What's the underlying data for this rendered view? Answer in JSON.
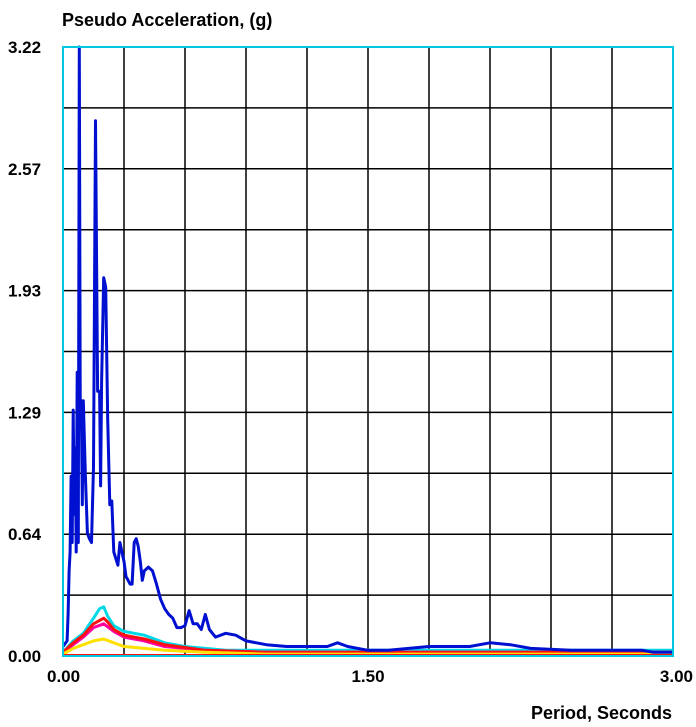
{
  "chart_data": {
    "type": "line",
    "ylabel": "Pseudo Acceleration, (g)",
    "xlabel": "Period, Seconds",
    "xlim": [
      0,
      3.0
    ],
    "ylim": [
      0,
      3.22
    ],
    "x_ticks": [
      "0.00",
      "1.50",
      "3.00"
    ],
    "y_ticks": [
      "0.00",
      "0.64",
      "1.29",
      "1.93",
      "2.57",
      "3.22"
    ],
    "grid": true,
    "series": [
      {
        "color": "#0010d0",
        "points": [
          [
            0.0,
            0.05
          ],
          [
            0.02,
            0.08
          ],
          [
            0.025,
            0.22
          ],
          [
            0.03,
            0.45
          ],
          [
            0.035,
            0.55
          ],
          [
            0.04,
            0.95
          ],
          [
            0.045,
            0.6
          ],
          [
            0.05,
            1.3
          ],
          [
            0.055,
            0.75
          ],
          [
            0.06,
            1.1
          ],
          [
            0.065,
            0.55
          ],
          [
            0.07,
            1.5
          ],
          [
            0.075,
            0.6
          ],
          [
            0.08,
            3.22
          ],
          [
            0.085,
            1.2
          ],
          [
            0.09,
            1.35
          ],
          [
            0.095,
            0.8
          ],
          [
            0.1,
            1.35
          ],
          [
            0.11,
            0.95
          ],
          [
            0.12,
            0.65
          ],
          [
            0.13,
            0.62
          ],
          [
            0.14,
            0.6
          ],
          [
            0.15,
            1.0
          ],
          [
            0.16,
            2.83
          ],
          [
            0.17,
            1.4
          ],
          [
            0.18,
            1.4
          ],
          [
            0.185,
            0.9
          ],
          [
            0.19,
            1.45
          ],
          [
            0.2,
            2.0
          ],
          [
            0.21,
            1.95
          ],
          [
            0.22,
            1.25
          ],
          [
            0.23,
            0.8
          ],
          [
            0.24,
            0.82
          ],
          [
            0.25,
            0.55
          ],
          [
            0.27,
            0.48
          ],
          [
            0.28,
            0.6
          ],
          [
            0.3,
            0.5
          ],
          [
            0.31,
            0.42
          ],
          [
            0.32,
            0.4
          ],
          [
            0.33,
            0.38
          ],
          [
            0.34,
            0.38
          ],
          [
            0.35,
            0.6
          ],
          [
            0.36,
            0.62
          ],
          [
            0.37,
            0.58
          ],
          [
            0.38,
            0.5
          ],
          [
            0.39,
            0.4
          ],
          [
            0.4,
            0.45
          ],
          [
            0.42,
            0.47
          ],
          [
            0.44,
            0.45
          ],
          [
            0.46,
            0.38
          ],
          [
            0.48,
            0.3
          ],
          [
            0.5,
            0.25
          ],
          [
            0.52,
            0.22
          ],
          [
            0.54,
            0.2
          ],
          [
            0.56,
            0.15
          ],
          [
            0.58,
            0.15
          ],
          [
            0.6,
            0.16
          ],
          [
            0.62,
            0.24
          ],
          [
            0.64,
            0.17
          ],
          [
            0.66,
            0.17
          ],
          [
            0.68,
            0.14
          ],
          [
            0.7,
            0.22
          ],
          [
            0.72,
            0.14
          ],
          [
            0.75,
            0.1
          ],
          [
            0.8,
            0.12
          ],
          [
            0.85,
            0.11
          ],
          [
            0.9,
            0.08
          ],
          [
            1.0,
            0.06
          ],
          [
            1.1,
            0.05
          ],
          [
            1.2,
            0.05
          ],
          [
            1.3,
            0.05
          ],
          [
            1.35,
            0.07
          ],
          [
            1.4,
            0.05
          ],
          [
            1.5,
            0.03
          ],
          [
            1.6,
            0.03
          ],
          [
            1.7,
            0.04
          ],
          [
            1.8,
            0.05
          ],
          [
            1.9,
            0.05
          ],
          [
            2.0,
            0.05
          ],
          [
            2.1,
            0.07
          ],
          [
            2.2,
            0.06
          ],
          [
            2.3,
            0.04
          ],
          [
            2.5,
            0.03
          ],
          [
            2.7,
            0.03
          ],
          [
            2.85,
            0.03
          ],
          [
            2.9,
            0.02
          ],
          [
            3.0,
            0.02
          ]
        ]
      },
      {
        "color": "#00d8e8",
        "points": [
          [
            0.0,
            0.02
          ],
          [
            0.05,
            0.08
          ],
          [
            0.1,
            0.12
          ],
          [
            0.15,
            0.2
          ],
          [
            0.18,
            0.25
          ],
          [
            0.2,
            0.26
          ],
          [
            0.22,
            0.21
          ],
          [
            0.25,
            0.16
          ],
          [
            0.3,
            0.13
          ],
          [
            0.35,
            0.12
          ],
          [
            0.4,
            0.11
          ],
          [
            0.5,
            0.07
          ],
          [
            0.6,
            0.05
          ],
          [
            0.8,
            0.03
          ],
          [
            1.0,
            0.03
          ],
          [
            1.5,
            0.03
          ],
          [
            2.0,
            0.03
          ],
          [
            2.5,
            0.03
          ],
          [
            3.0,
            0.03
          ]
        ]
      },
      {
        "color": "#ff00a0",
        "points": [
          [
            0.0,
            0.02
          ],
          [
            0.05,
            0.06
          ],
          [
            0.1,
            0.1
          ],
          [
            0.15,
            0.15
          ],
          [
            0.2,
            0.17
          ],
          [
            0.25,
            0.13
          ],
          [
            0.3,
            0.1
          ],
          [
            0.4,
            0.08
          ],
          [
            0.5,
            0.05
          ],
          [
            0.7,
            0.03
          ],
          [
            1.0,
            0.02
          ],
          [
            1.5,
            0.02
          ],
          [
            2.0,
            0.02
          ],
          [
            2.5,
            0.02
          ],
          [
            3.0,
            0.02
          ]
        ]
      },
      {
        "color": "#ff1010",
        "points": [
          [
            0.0,
            0.02
          ],
          [
            0.05,
            0.07
          ],
          [
            0.1,
            0.11
          ],
          [
            0.15,
            0.17
          ],
          [
            0.2,
            0.2
          ],
          [
            0.22,
            0.18
          ],
          [
            0.25,
            0.14
          ],
          [
            0.3,
            0.11
          ],
          [
            0.35,
            0.1
          ],
          [
            0.4,
            0.09
          ],
          [
            0.5,
            0.06
          ],
          [
            0.7,
            0.03
          ],
          [
            1.0,
            0.02
          ],
          [
            1.5,
            0.02
          ],
          [
            2.0,
            0.02
          ],
          [
            2.5,
            0.02
          ],
          [
            3.0,
            0.02
          ]
        ]
      },
      {
        "color": "#ffe000",
        "points": [
          [
            0.0,
            0.01
          ],
          [
            0.05,
            0.04
          ],
          [
            0.1,
            0.06
          ],
          [
            0.15,
            0.08
          ],
          [
            0.2,
            0.09
          ],
          [
            0.25,
            0.07
          ],
          [
            0.3,
            0.05
          ],
          [
            0.4,
            0.04
          ],
          [
            0.5,
            0.03
          ],
          [
            0.7,
            0.02
          ],
          [
            1.0,
            0.01
          ],
          [
            1.5,
            0.01
          ],
          [
            2.0,
            0.01
          ],
          [
            3.0,
            0.01
          ]
        ]
      }
    ]
  }
}
